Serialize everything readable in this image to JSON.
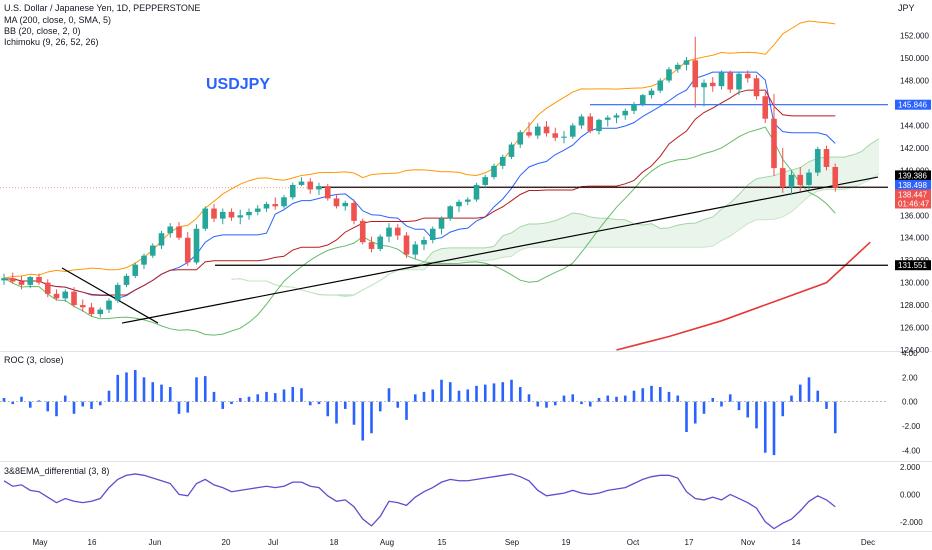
{
  "header": {
    "title": "U.S. Dollar / Japanese Yen, 1D, PEPPERSTONE",
    "currency": "JPY",
    "indicators": [
      "MA (200, close, 0, SMA, 5)",
      "BB (20, close, 2, 0)",
      "Ichimoku (9, 26, 52, 26)"
    ]
  },
  "annotation": {
    "symbol": "USDJPY"
  },
  "colors": {
    "up": "#26a69a",
    "down": "#ef5350",
    "ma200": "#e53935",
    "bb": "#ff9800",
    "cloud": "#4caf50",
    "roc": "#2962ff",
    "ema": "#5b4fcf",
    "level": "#2962ff"
  },
  "chart_data": [
    {
      "type": "candlestick",
      "title": "U.S. Dollar / Japanese Yen, 1D, PEPPERSTONE",
      "x_ticks": [
        "May",
        "16",
        "Jun",
        "20",
        "Jul",
        "18",
        "Aug",
        "15",
        "Sep",
        "19",
        "Oct",
        "17",
        "Nov",
        "14",
        "Dec"
      ],
      "y_ticks": [
        "152.000",
        "150.000",
        "148.000",
        "146.000",
        "144.000",
        "142.000",
        "140.000",
        "138.000",
        "136.000",
        "134.000",
        "132.000",
        "130.000",
        "128.000",
        "126.000",
        "124.000"
      ],
      "ylim": [
        124,
        152.5
      ],
      "price_labels": [
        {
          "value": "145.846",
          "kind": "level"
        },
        {
          "value": "139.386",
          "kind": "line"
        },
        {
          "value": "138.498",
          "kind": "level"
        },
        {
          "value": "138.447",
          "kind": "last"
        },
        {
          "value": "01:46:47",
          "kind": "countdown"
        },
        {
          "value": "131.551",
          "kind": "line"
        }
      ],
      "ohlc": [
        [
          130.2,
          130.8,
          129.8,
          130.4
        ],
        [
          130.4,
          130.9,
          129.9,
          130.1
        ],
        [
          130.1,
          130.6,
          129.4,
          129.8
        ],
        [
          129.8,
          130.6,
          129.5,
          130.5
        ],
        [
          130.5,
          130.8,
          129.8,
          130.0
        ],
        [
          130.0,
          130.3,
          128.7,
          129.0
        ],
        [
          129.0,
          129.4,
          128.4,
          128.6
        ],
        [
          128.6,
          129.4,
          128.3,
          129.2
        ],
        [
          129.2,
          129.6,
          127.8,
          128.0
        ],
        [
          128.0,
          128.5,
          127.4,
          127.8
        ],
        [
          127.8,
          128.2,
          127.0,
          127.2
        ],
        [
          127.2,
          127.8,
          126.9,
          127.6
        ],
        [
          127.6,
          128.6,
          127.3,
          128.4
        ],
        [
          128.4,
          130.0,
          128.2,
          129.8
        ],
        [
          129.8,
          130.8,
          129.6,
          130.6
        ],
        [
          130.6,
          131.8,
          130.4,
          131.6
        ],
        [
          131.6,
          132.6,
          131.2,
          132.4
        ],
        [
          132.4,
          133.5,
          132.2,
          133.3
        ],
        [
          133.3,
          134.6,
          133.0,
          134.4
        ],
        [
          134.4,
          135.3,
          134.0,
          135.0
        ],
        [
          135.0,
          135.4,
          133.8,
          134.0
        ],
        [
          134.0,
          134.5,
          131.5,
          131.8
        ],
        [
          131.8,
          135.2,
          131.6,
          134.8
        ],
        [
          134.8,
          136.8,
          134.6,
          136.6
        ],
        [
          136.6,
          137.0,
          135.4,
          135.7
        ],
        [
          135.7,
          136.6,
          135.2,
          136.3
        ],
        [
          136.3,
          136.6,
          135.5,
          135.8
        ],
        [
          135.8,
          136.5,
          135.2,
          136.0
        ],
        [
          136.0,
          136.6,
          135.6,
          136.3
        ],
        [
          136.3,
          136.9,
          136.0,
          136.6
        ],
        [
          136.6,
          137.2,
          136.3,
          137.0
        ],
        [
          137.0,
          137.6,
          136.5,
          136.8
        ],
        [
          136.8,
          137.8,
          136.6,
          137.6
        ],
        [
          137.6,
          138.9,
          137.4,
          138.7
        ],
        [
          138.7,
          139.4,
          138.6,
          139.0
        ],
        [
          139.0,
          139.3,
          137.9,
          138.3
        ],
        [
          138.3,
          138.9,
          137.8,
          138.6
        ],
        [
          138.6,
          138.8,
          137.3,
          137.5
        ],
        [
          137.5,
          137.9,
          136.6,
          136.8
        ],
        [
          136.8,
          137.3,
          136.4,
          137.1
        ],
        [
          137.1,
          137.4,
          135.2,
          135.5
        ],
        [
          135.5,
          135.7,
          133.4,
          133.6
        ],
        [
          133.6,
          134.1,
          132.7,
          133.0
        ],
        [
          133.0,
          134.3,
          132.8,
          134.1
        ],
        [
          134.1,
          135.3,
          133.6,
          134.9
        ],
        [
          134.9,
          135.2,
          133.8,
          134.2
        ],
        [
          134.2,
          134.5,
          132.2,
          132.5
        ],
        [
          132.5,
          133.7,
          132.1,
          133.4
        ],
        [
          133.4,
          134.1,
          132.9,
          133.8
        ],
        [
          133.8,
          135.0,
          133.5,
          134.8
        ],
        [
          134.8,
          135.9,
          134.3,
          135.7
        ],
        [
          135.7,
          136.9,
          135.5,
          136.8
        ],
        [
          136.8,
          137.4,
          136.3,
          137.2
        ],
        [
          137.2,
          137.6,
          136.9,
          137.4
        ],
        [
          137.4,
          138.9,
          137.2,
          138.7
        ],
        [
          138.7,
          139.6,
          138.4,
          139.4
        ],
        [
          139.4,
          140.6,
          139.2,
          140.4
        ],
        [
          140.4,
          141.4,
          140.1,
          141.2
        ],
        [
          141.2,
          142.5,
          141.0,
          142.3
        ],
        [
          142.3,
          143.6,
          142.0,
          143.4
        ],
        [
          143.4,
          144.3,
          142.9,
          143.1
        ],
        [
          143.1,
          144.2,
          142.8,
          143.9
        ],
        [
          143.9,
          144.4,
          143.0,
          143.3
        ],
        [
          143.3,
          143.8,
          142.6,
          142.9
        ],
        [
          142.9,
          143.5,
          142.4,
          143.0
        ],
        [
          143.0,
          144.2,
          142.8,
          144.0
        ],
        [
          144.0,
          145.0,
          143.7,
          144.8
        ],
        [
          144.8,
          145.1,
          143.3,
          143.5
        ],
        [
          143.5,
          144.6,
          143.2,
          144.5
        ],
        [
          144.5,
          144.9,
          143.9,
          144.7
        ],
        [
          144.7,
          145.1,
          144.2,
          144.9
        ],
        [
          144.9,
          145.5,
          144.5,
          145.3
        ],
        [
          145.3,
          146.1,
          145.0,
          145.9
        ],
        [
          145.9,
          146.8,
          145.7,
          146.7
        ],
        [
          146.7,
          147.3,
          146.4,
          147.1
        ],
        [
          147.1,
          148.2,
          146.9,
          148.0
        ],
        [
          148.0,
          149.2,
          147.8,
          149.0
        ],
        [
          149.0,
          149.6,
          148.7,
          149.4
        ],
        [
          149.4,
          150.1,
          148.9,
          149.8
        ],
        [
          149.8,
          151.9,
          145.6,
          147.4
        ],
        [
          147.4,
          148.1,
          145.7,
          147.8
        ],
        [
          147.8,
          148.3,
          147.0,
          147.5
        ],
        [
          147.5,
          148.9,
          147.2,
          148.7
        ],
        [
          148.7,
          148.9,
          146.9,
          147.2
        ],
        [
          147.2,
          148.8,
          146.7,
          148.6
        ],
        [
          148.6,
          148.9,
          147.8,
          148.2
        ],
        [
          148.2,
          148.5,
          146.3,
          146.6
        ],
        [
          146.6,
          147.0,
          144.2,
          144.6
        ],
        [
          144.6,
          146.8,
          139.5,
          140.2
        ],
        [
          140.2,
          142.0,
          138.0,
          138.5
        ],
        [
          138.5,
          140.0,
          137.8,
          139.6
        ],
        [
          139.6,
          140.3,
          138.1,
          138.7
        ],
        [
          138.7,
          140.1,
          138.3,
          139.8
        ],
        [
          139.8,
          142.1,
          139.5,
          141.9
        ],
        [
          141.9,
          142.2,
          140.0,
          140.3
        ],
        [
          140.3,
          140.6,
          138.1,
          138.45
        ]
      ],
      "series": [
        {
          "name": "MA (200, close, 0, SMA, 5)",
          "points": [
            [
              70,
              124.0
            ],
            [
              76,
              125.2
            ],
            [
              82,
              126.6
            ],
            [
              88,
              128.3
            ],
            [
              94,
              130.0
            ],
            [
              99,
              133.6
            ]
          ]
        },
        {
          "name": "Ichimoku (9, 26, 52, 26)",
          "kind": "cloud"
        },
        {
          "name": "BB (20, close, 2, 0)",
          "kind": "bands"
        }
      ],
      "horizontal_lines": [
        {
          "value": 145.846,
          "color": "#2962ff"
        },
        {
          "value": 138.498,
          "color": "#000000"
        },
        {
          "value": 131.551,
          "color": "#000000"
        }
      ]
    },
    {
      "type": "bar",
      "title": "ROC (3, close)",
      "y_ticks": [
        "4.00",
        "2.00",
        "0.00",
        "-2.00",
        "-4.00"
      ],
      "ylim": [
        -4.8,
        4.0
      ],
      "values": [
        0.3,
        -0.2,
        0.4,
        -0.5,
        0.1,
        -0.8,
        -1.2,
        0.5,
        -1.0,
        -0.4,
        -0.6,
        -0.3,
        0.9,
        2.2,
        2.4,
        2.6,
        2.0,
        1.6,
        1.4,
        1.2,
        -1.0,
        -0.9,
        2.0,
        2.1,
        0.8,
        -0.6,
        -0.2,
        0.3,
        0.4,
        0.6,
        0.8,
        0.7,
        1.0,
        1.2,
        1.1,
        -0.3,
        -0.2,
        -1.2,
        -1.8,
        -0.6,
        -1.9,
        -3.2,
        -2.6,
        -0.8,
        1.1,
        -0.5,
        -1.5,
        0.6,
        0.8,
        1.0,
        1.8,
        1.6,
        0.9,
        1.0,
        1.3,
        1.4,
        1.5,
        1.6,
        1.8,
        1.2,
        0.6,
        -0.4,
        -0.5,
        -0.3,
        0.5,
        0.6,
        -0.2,
        -0.4,
        0.3,
        0.5,
        0.4,
        0.5,
        0.9,
        1.1,
        1.3,
        1.2,
        0.8,
        0.5,
        -2.5,
        -1.8,
        -1.0,
        0.3,
        -0.4,
        0.6,
        -0.7,
        -1.3,
        -2.2,
        -4.2,
        -4.4,
        -1.2,
        0.5,
        1.4,
        2.0,
        0.9,
        -0.6,
        -2.6
      ]
    },
    {
      "type": "line",
      "title": "3&8EMA_differential (3, 8)",
      "y_ticks": [
        "2.000",
        "0.000",
        "-2.000"
      ],
      "ylim": [
        -2.6,
        2.3
      ],
      "values": [
        1.0,
        0.6,
        0.7,
        0.3,
        0.2,
        -0.2,
        -0.6,
        -0.3,
        -0.5,
        -0.6,
        -0.5,
        -0.3,
        0.5,
        1.1,
        1.4,
        1.5,
        1.4,
        1.2,
        1.0,
        0.8,
        0.0,
        -0.1,
        0.8,
        1.1,
        0.7,
        0.5,
        0.2,
        0.3,
        0.4,
        0.5,
        0.6,
        0.5,
        0.6,
        0.9,
        0.9,
        0.6,
        0.5,
        -0.1,
        -0.5,
        -0.4,
        -0.9,
        -1.8,
        -2.3,
        -1.6,
        -0.5,
        -0.6,
        -0.8,
        -0.2,
        0.2,
        0.5,
        0.9,
        1.1,
        1.0,
        1.0,
        1.1,
        1.2,
        1.3,
        1.4,
        1.5,
        1.3,
        1.0,
        0.3,
        -0.1,
        0.0,
        0.1,
        0.3,
        0.1,
        0.0,
        0.1,
        0.3,
        0.4,
        0.5,
        0.8,
        1.1,
        1.3,
        1.4,
        1.4,
        1.2,
        0.2,
        -0.3,
        -0.4,
        -0.2,
        -0.4,
        0.0,
        -0.3,
        -0.6,
        -1.0,
        -2.0,
        -2.5,
        -2.1,
        -1.8,
        -1.2,
        -0.5,
        -0.1,
        -0.4,
        -0.9
      ]
    }
  ]
}
